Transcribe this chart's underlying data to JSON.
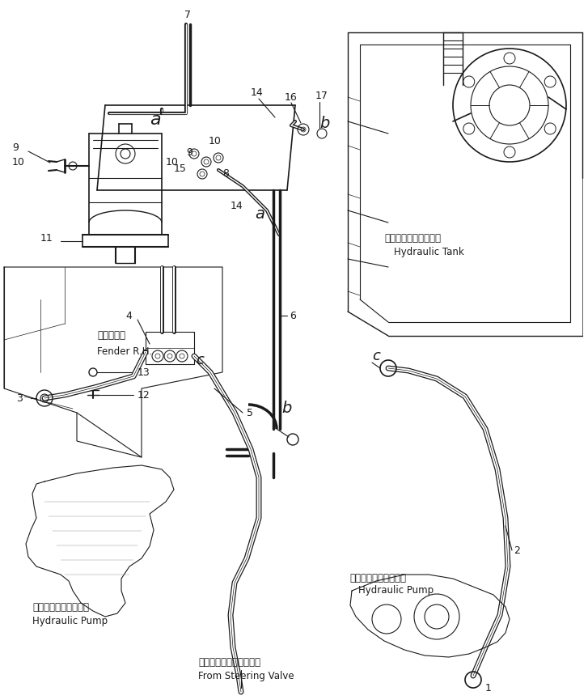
{
  "bg_color": "#ffffff",
  "lc": "#1a1a1a",
  "fig_w": 7.27,
  "fig_h": 8.65,
  "dpi": 100,
  "labels": {
    "fender_jp": "フェンダ右",
    "fender_en": "Fender R.H.",
    "tank_jp": "ハイドロリックタンク",
    "tank_en": "Hydraulic Tank",
    "pump1_jp": "ハイドロリックポンプ",
    "pump1_en": "Hydraulic Pump",
    "pump2_jp": "ハイドロリックポンプ",
    "pump2_en": "Hydraulic Pump",
    "steering_jp": "ステアリングバルブから",
    "steering_en": "From Steering Valve"
  }
}
